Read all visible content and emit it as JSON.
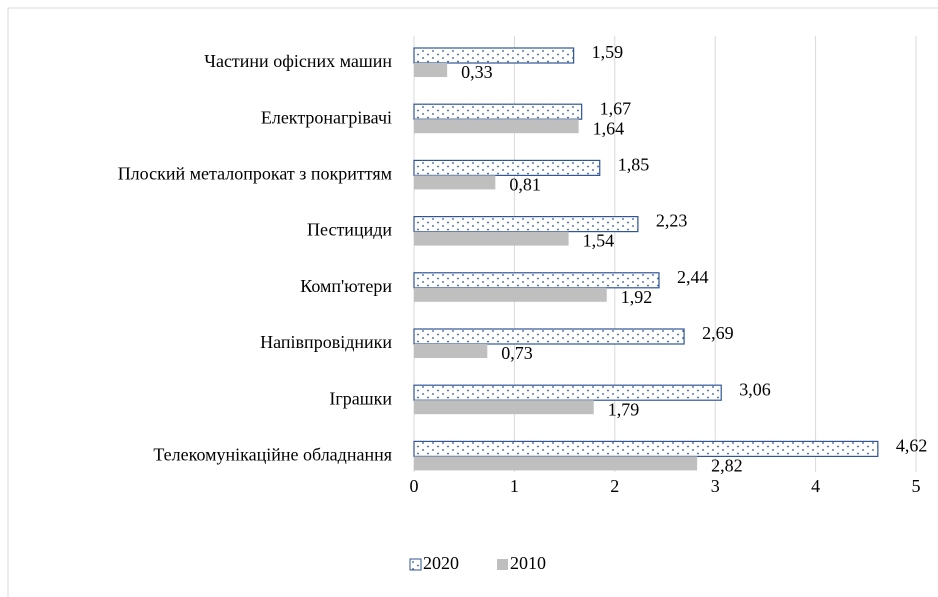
{
  "chart_data": {
    "type": "bar",
    "orientation": "horizontal",
    "categories": [
      "Частини офісних машин",
      "Електронагрівачі",
      "Плоский металопрокат з покриттям",
      "Пестициди",
      "Комп'ютери",
      "Напівпровідники",
      "Іграшки",
      "Телекомунікаційне обладнання"
    ],
    "series": [
      {
        "name": "2020",
        "color": "#2f5597",
        "values": [
          1.59,
          1.67,
          1.85,
          2.23,
          2.44,
          2.69,
          3.06,
          4.62
        ],
        "value_labels": [
          "1,59",
          "1,67",
          "1,85",
          "2,23",
          "2,44",
          "2,69",
          "3,06",
          "4,62"
        ]
      },
      {
        "name": "2010",
        "color": "#bfbfbf",
        "values": [
          0.33,
          1.64,
          0.81,
          1.54,
          1.92,
          0.73,
          1.79,
          2.82
        ],
        "value_labels": [
          "0,33",
          "1,64",
          "0,81",
          "1,54",
          "1,92",
          "0,73",
          "1,79",
          "2,82"
        ]
      }
    ],
    "xlim": [
      0,
      5
    ],
    "xticks": [
      0,
      1,
      2,
      3,
      4,
      5
    ],
    "grid": true,
    "legend": "bottom"
  }
}
